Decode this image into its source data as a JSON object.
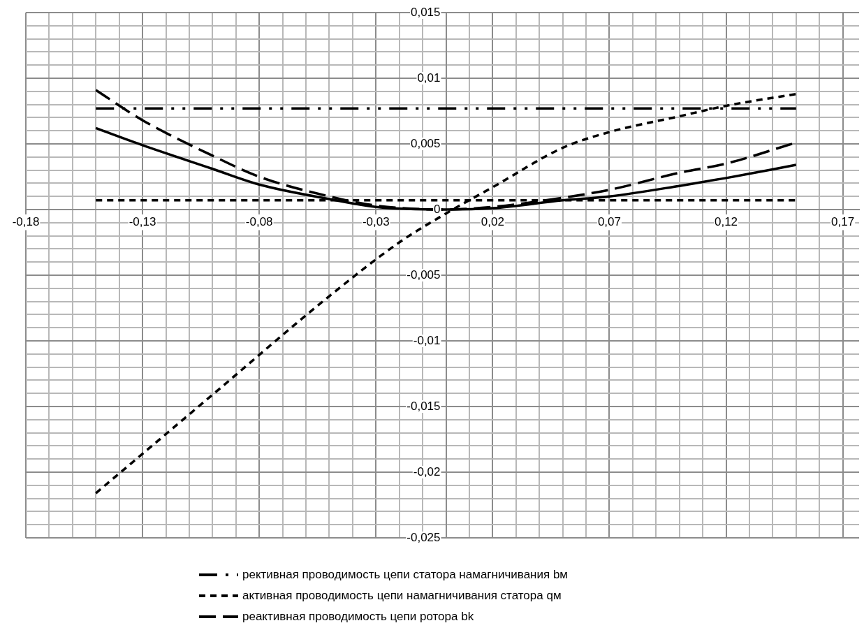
{
  "chart_data": {
    "type": "line",
    "legend": "bottom",
    "grid": true,
    "marker": "none",
    "xlim": [
      -0.18,
      0.177
    ],
    "ylim": [
      -0.025,
      0.015
    ],
    "xticks": [
      {
        "value": -0.18,
        "label": "-0,18"
      },
      {
        "value": -0.17,
        "label": null
      },
      {
        "value": -0.16,
        "label": null
      },
      {
        "value": -0.15,
        "label": null
      },
      {
        "value": -0.14,
        "label": null
      },
      {
        "value": -0.13,
        "label": "-0,13"
      },
      {
        "value": -0.12,
        "label": null
      },
      {
        "value": -0.11,
        "label": null
      },
      {
        "value": -0.1,
        "label": null
      },
      {
        "value": -0.09,
        "label": null
      },
      {
        "value": -0.08,
        "label": "-0,08"
      },
      {
        "value": -0.07,
        "label": null
      },
      {
        "value": -0.06,
        "label": null
      },
      {
        "value": -0.05,
        "label": null
      },
      {
        "value": -0.04,
        "label": null
      },
      {
        "value": -0.03,
        "label": "-0,03"
      },
      {
        "value": -0.02,
        "label": null
      },
      {
        "value": -0.01,
        "label": null
      },
      {
        "value": 0,
        "label": null
      },
      {
        "value": 0.01,
        "label": null
      },
      {
        "value": 0.02,
        "label": "0,02"
      },
      {
        "value": 0.03,
        "label": null
      },
      {
        "value": 0.04,
        "label": null
      },
      {
        "value": 0.05,
        "label": null
      },
      {
        "value": 0.06,
        "label": null
      },
      {
        "value": 0.07,
        "label": "0,07"
      },
      {
        "value": 0.08,
        "label": null
      },
      {
        "value": 0.09,
        "label": null
      },
      {
        "value": 0.1,
        "label": null
      },
      {
        "value": 0.11,
        "label": null
      },
      {
        "value": 0.12,
        "label": "0,12"
      },
      {
        "value": 0.13,
        "label": null
      },
      {
        "value": 0.14,
        "label": null
      },
      {
        "value": 0.15,
        "label": null
      },
      {
        "value": 0.16,
        "label": null
      },
      {
        "value": 0.17,
        "label": "0,17"
      }
    ],
    "yticks": [
      {
        "value": -0.025,
        "label": "-0,025"
      },
      {
        "value": -0.024,
        "label": null
      },
      {
        "value": -0.023,
        "label": null
      },
      {
        "value": -0.022,
        "label": null
      },
      {
        "value": -0.021,
        "label": null
      },
      {
        "value": -0.02,
        "label": "-0,02"
      },
      {
        "value": -0.019,
        "label": null
      },
      {
        "value": -0.018,
        "label": null
      },
      {
        "value": -0.017,
        "label": null
      },
      {
        "value": -0.016,
        "label": null
      },
      {
        "value": -0.015,
        "label": "-0,015"
      },
      {
        "value": -0.014,
        "label": null
      },
      {
        "value": -0.013,
        "label": null
      },
      {
        "value": -0.012,
        "label": null
      },
      {
        "value": -0.011,
        "label": null
      },
      {
        "value": -0.01,
        "label": "-0,01"
      },
      {
        "value": -0.009,
        "label": null
      },
      {
        "value": -0.008,
        "label": null
      },
      {
        "value": -0.007,
        "label": null
      },
      {
        "value": -0.006,
        "label": null
      },
      {
        "value": -0.005,
        "label": "-0,005"
      },
      {
        "value": -0.004,
        "label": null
      },
      {
        "value": -0.003,
        "label": null
      },
      {
        "value": -0.002,
        "label": null
      },
      {
        "value": -0.001,
        "label": null
      },
      {
        "value": 0,
        "label": "0"
      },
      {
        "value": 0.001,
        "label": null
      },
      {
        "value": 0.002,
        "label": null
      },
      {
        "value": 0.003,
        "label": null
      },
      {
        "value": 0.004,
        "label": null
      },
      {
        "value": 0.005,
        "label": "0,005"
      },
      {
        "value": 0.006,
        "label": null
      },
      {
        "value": 0.007,
        "label": null
      },
      {
        "value": 0.008,
        "label": null
      },
      {
        "value": 0.009,
        "label": null
      },
      {
        "value": 0.01,
        "label": "0,01"
      },
      {
        "value": 0.011,
        "label": null
      },
      {
        "value": 0.012,
        "label": null
      },
      {
        "value": 0.013,
        "label": null
      },
      {
        "value": 0.014,
        "label": null
      },
      {
        "value": 0.015,
        "label": "0,015"
      }
    ],
    "series": [
      {
        "name": "рективная проводимость цепи статора намагничивания bм",
        "color": "#000000",
        "line_style": "dashdot",
        "x": [
          -0.15,
          0.15
        ],
        "values": [
          0.0077,
          0.0077
        ]
      },
      {
        "name": "активная проводимость цепи намагничивания статора qм",
        "color": "#000000",
        "line_style": "dashed",
        "x": [
          -0.15,
          0.15
        ],
        "values": [
          0.0007,
          0.0007
        ]
      },
      {
        "name": "реактивная проводимость цепи ротора bk",
        "color": "#000000",
        "line_style": "longdash",
        "x": [
          -0.15,
          -0.13,
          -0.1,
          -0.08,
          -0.05,
          -0.03,
          0,
          0.02,
          0.05,
          0.07,
          0.1,
          0.12,
          0.15
        ],
        "values": [
          0.0091,
          0.0068,
          0.0041,
          0.0025,
          0.001,
          0.0003,
          0,
          0.0002,
          0.0009,
          0.0015,
          0.0028,
          0.0035,
          0.0051
        ]
      },
      {
        "color": "#000000",
        "line_style": "solid",
        "x": [
          -0.15,
          -0.13,
          -0.1,
          -0.08,
          -0.05,
          -0.03,
          0,
          0.02,
          0.05,
          0.07,
          0.1,
          0.12,
          0.15
        ],
        "values": [
          0.0062,
          0.0049,
          0.0031,
          0.0019,
          0.0008,
          0.0002,
          0,
          0.0001,
          0.0007,
          0.001,
          0.0018,
          0.0024,
          0.0034
        ]
      },
      {
        "color": "#000000",
        "line_style": "dashed",
        "x": [
          -0.15,
          -0.1,
          -0.05,
          -0.02,
          0,
          0.02,
          0.05,
          0.07,
          0.1,
          0.12,
          0.15
        ],
        "values": [
          -0.0216,
          -0.0141,
          -0.0066,
          -0.0025,
          -0.0003,
          0.0017,
          0.0047,
          0.0059,
          0.0071,
          0.0079,
          0.0088
        ]
      }
    ]
  }
}
